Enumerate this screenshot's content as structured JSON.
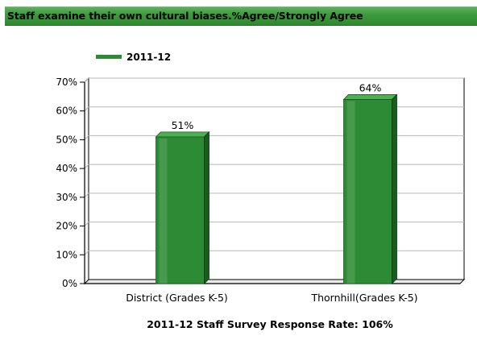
{
  "title": "Staff examine their own cultural biases.%Agree/Strongly Agree",
  "footer": "2011-12 Staff Survey Response Rate: 106%",
  "colors": {
    "bar_front": "#2e8b35",
    "bar_top": "#4caf50",
    "bar_side": "#1a5c20",
    "title_bg": "#3f9a3f"
  },
  "chart_data": {
    "type": "bar",
    "categories": [
      "District (Grades K-5)",
      "Thornhill(Grades K-5)"
    ],
    "series": [
      {
        "name": "2011-12",
        "values": [
          51,
          64
        ]
      }
    ],
    "data_labels": [
      "51%",
      "64%"
    ],
    "ylim": [
      0,
      70
    ],
    "y_ticks": [
      0,
      10,
      20,
      30,
      40,
      50,
      60,
      70
    ],
    "y_tick_labels": [
      "0%",
      "10%",
      "20%",
      "30%",
      "40%",
      "50%",
      "60%",
      "70%"
    ],
    "grid": true,
    "legend_position": "top-left"
  }
}
